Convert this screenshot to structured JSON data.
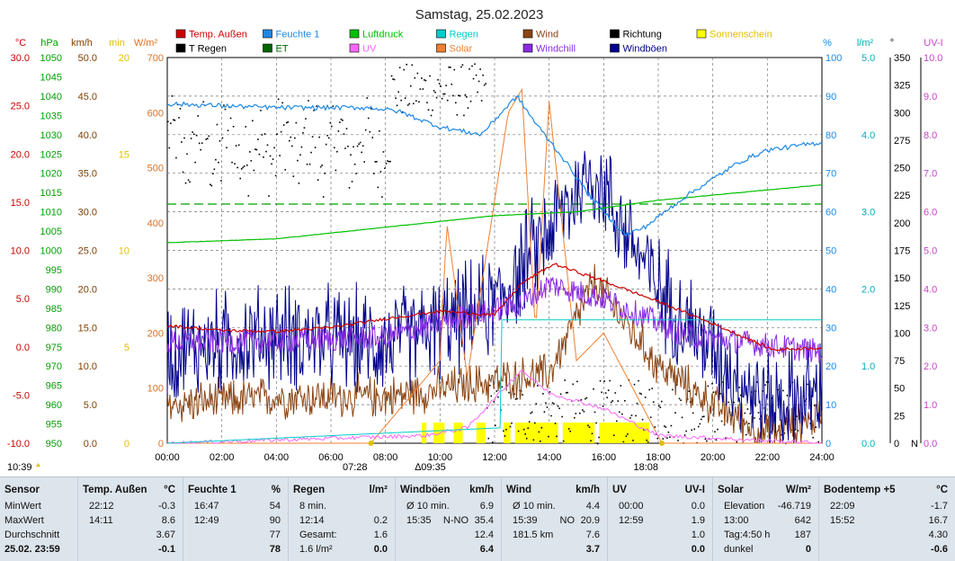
{
  "title": "Samstag, 25.02.2023",
  "legend": [
    {
      "label": "Temp. Außen",
      "color": "#cc0000"
    },
    {
      "label": "Feuchte 1",
      "color": "#1e88e5"
    },
    {
      "label": "Luftdruck",
      "color": "#00c000"
    },
    {
      "label": "Regen",
      "color": "#00cccc"
    },
    {
      "label": "Wind",
      "color": "#8b4513"
    },
    {
      "label": "Richtung",
      "color": "#000000"
    },
    {
      "label": "Sonnenschein",
      "color": "#ffff00"
    },
    {
      "label": "T Regen",
      "color": "#000000"
    },
    {
      "label": "ET",
      "color": "#006600"
    },
    {
      "label": "UV",
      "color": "#ff66ff"
    },
    {
      "label": "Solar",
      "color": "#f08030"
    },
    {
      "label": "Windchill",
      "color": "#8a2be2"
    },
    {
      "label": "Windböen",
      "color": "#00008b"
    }
  ],
  "axes": {
    "temp": {
      "unit": "°C",
      "color": "#cc0000",
      "ticks": [
        "30.0",
        "25.0",
        "20.0",
        "15.0",
        "10.0",
        "5.0",
        "0.0",
        "-5.0",
        "-10.0"
      ]
    },
    "hpa": {
      "unit": "hPa",
      "color": "#00a000",
      "ticks": [
        "1050",
        "1045",
        "1040",
        "1035",
        "1030",
        "1025",
        "1020",
        "1015",
        "1010",
        "1005",
        "1000",
        "995",
        "990",
        "985",
        "980",
        "975",
        "970",
        "965",
        "960",
        "955",
        "950"
      ]
    },
    "kmh": {
      "unit": "km/h",
      "color": "#804000",
      "ticks": [
        "50.0",
        "45.0",
        "40.0",
        "35.0",
        "30.0",
        "25.0",
        "20.0",
        "15.0",
        "10.0",
        "5.0",
        "0.0"
      ]
    },
    "min": {
      "unit": "min",
      "color": "#e0c000",
      "ticks": [
        "20",
        "15",
        "10",
        "5",
        "0"
      ]
    },
    "wm2": {
      "unit": "W/m²",
      "color": "#e07020",
      "ticks": [
        "700",
        "600",
        "500",
        "400",
        "300",
        "200",
        "100",
        "0"
      ]
    },
    "pct": {
      "unit": "%",
      "color": "#1e88e5",
      "ticks": [
        "100",
        "90",
        "80",
        "70",
        "60",
        "50",
        "40",
        "30",
        "20",
        "10",
        "0"
      ]
    },
    "lm2": {
      "unit": "l/m²",
      "color": "#00b0c0",
      "ticks": [
        "5.0",
        "4.0",
        "3.0",
        "2.0",
        "1.0",
        "0.0"
      ]
    },
    "deg": {
      "unit": "°",
      "color": "#000000",
      "ticks": [
        "350",
        "325",
        "300",
        "275",
        "250",
        "225",
        "200",
        "175",
        "150",
        "125",
        "100",
        "75",
        "50",
        "25",
        "0"
      ],
      "bottom_label": "N"
    },
    "uvi": {
      "unit": "UV-I",
      "color": "#cc44cc",
      "ticks": [
        "10.0",
        "9.0",
        "8.0",
        "7.0",
        "6.0",
        "5.0",
        "4.0",
        "3.0",
        "2.0",
        "1.0",
        "0.0"
      ]
    },
    "time_ticks": [
      "00:00",
      "02:00",
      "04:00",
      "06:00",
      "08:00",
      "10:00",
      "12:00",
      "14:00",
      "16:00",
      "18:00",
      "20:00",
      "22:00",
      "24:00"
    ]
  },
  "markers": {
    "sunrise": "07:28",
    "sunset": "18:08",
    "now": "10:39",
    "uvmark": "09:35"
  },
  "chart_data": {
    "type": "line",
    "x_range": [
      "00:00",
      "24:00"
    ],
    "series": [
      {
        "name": "Temp. Außen",
        "unit": "°C",
        "points": [
          [
            "00:00",
            2.2
          ],
          [
            "02:00",
            1.7
          ],
          [
            "04:00",
            1.6
          ],
          [
            "06:00",
            2.0
          ],
          [
            "08:00",
            2.9
          ],
          [
            "10:00",
            3.7
          ],
          [
            "12:00",
            3.3
          ],
          [
            "13:00",
            6.6
          ],
          [
            "14:11",
            8.6
          ],
          [
            "16:00",
            6.8
          ],
          [
            "18:00",
            4.7
          ],
          [
            "20:00",
            2.4
          ],
          [
            "22:12",
            -0.3
          ],
          [
            "24:00",
            -0.1
          ]
        ]
      },
      {
        "name": "Feuchte 1",
        "unit": "%",
        "points": [
          [
            "00:00",
            88
          ],
          [
            "04:00",
            87
          ],
          [
            "07:30",
            87
          ],
          [
            "08:30",
            86
          ],
          [
            "10:00",
            82
          ],
          [
            "11:30",
            80
          ],
          [
            "12:49",
            90
          ],
          [
            "13:30",
            83
          ],
          [
            "14:30",
            74
          ],
          [
            "15:30",
            64
          ],
          [
            "16:47",
            54
          ],
          [
            "17:30",
            56
          ],
          [
            "19:00",
            64
          ],
          [
            "21:00",
            73
          ],
          [
            "22:00",
            76
          ],
          [
            "24:00",
            78
          ]
        ]
      },
      {
        "name": "Luftdruck",
        "unit": "hPa",
        "points": [
          [
            "00:00",
            1002
          ],
          [
            "04:00",
            1003
          ],
          [
            "08:00",
            1006
          ],
          [
            "12:00",
            1009
          ],
          [
            "15:00",
            1010
          ],
          [
            "18:00",
            1013
          ],
          [
            "21:00",
            1015
          ],
          [
            "24:00",
            1017
          ]
        ]
      },
      {
        "name": "Regen",
        "unit": "l/m²",
        "points": [
          [
            "00:00",
            0
          ],
          [
            "12:14",
            0.2
          ],
          [
            "12:15",
            1.6
          ],
          [
            "24:00",
            1.6
          ]
        ]
      },
      {
        "name": "Wind",
        "unit": "km/h",
        "points": [
          [
            "00:00",
            5
          ],
          [
            "04:00",
            6
          ],
          [
            "08:00",
            6
          ],
          [
            "10:00",
            7
          ],
          [
            "12:00",
            8
          ],
          [
            "14:00",
            9
          ],
          [
            "15:39",
            20.9
          ],
          [
            "18:00",
            10
          ],
          [
            "20:00",
            5
          ],
          [
            "22:00",
            1
          ],
          [
            "24:00",
            3.7
          ]
        ]
      },
      {
        "name": "Windböen",
        "unit": "km/h",
        "points": [
          [
            "00:00",
            12
          ],
          [
            "04:00",
            14
          ],
          [
            "08:00",
            13
          ],
          [
            "10:00",
            15
          ],
          [
            "12:00",
            18
          ],
          [
            "15:35",
            35.4
          ],
          [
            "18:00",
            20
          ],
          [
            "20:00",
            12
          ],
          [
            "22:00",
            5
          ],
          [
            "24:00",
            6.4
          ]
        ]
      },
      {
        "name": "Windchill",
        "unit": "°C",
        "points": [
          [
            "00:00",
            0.5
          ],
          [
            "04:00",
            0.6
          ],
          [
            "08:00",
            1.0
          ],
          [
            "10:00",
            2.5
          ],
          [
            "13:00",
            4.5
          ],
          [
            "14:00",
            6.5
          ],
          [
            "16:00",
            5.0
          ],
          [
            "18:00",
            2.5
          ],
          [
            "19:00",
            1.2
          ],
          [
            "24:00",
            -0.5
          ]
        ]
      },
      {
        "name": "Solar",
        "unit": "W/m²",
        "points": [
          [
            "00:00",
            0
          ],
          [
            "07:28",
            0
          ],
          [
            "09:00",
            90
          ],
          [
            "10:00",
            150
          ],
          [
            "10:15",
            400
          ],
          [
            "11:00",
            120
          ],
          [
            "12:30",
            600
          ],
          [
            "13:00",
            642
          ],
          [
            "13:30",
            200
          ],
          [
            "14:00",
            620
          ],
          [
            "15:00",
            150
          ],
          [
            "16:00",
            200
          ],
          [
            "18:08",
            0
          ],
          [
            "24:00",
            0
          ]
        ]
      },
      {
        "name": "UV",
        "unit": "UV-I",
        "points": [
          [
            "00:00",
            0
          ],
          [
            "09:30",
            0.2
          ],
          [
            "11:00",
            0.4
          ],
          [
            "12:59",
            1.9
          ],
          [
            "14:00",
            1.3
          ],
          [
            "16:00",
            0.9
          ],
          [
            "18:00",
            0.2
          ],
          [
            "24:00",
            0
          ]
        ]
      }
    ]
  },
  "stats": {
    "columns": [
      {
        "header": "Sensor",
        "rows": [
          [
            "MinWert"
          ],
          [
            "MaxWert"
          ],
          [
            "Durchschnitt"
          ],
          [
            "25.02. 23:59"
          ]
        ]
      },
      {
        "header": "Temp. Außen",
        "unit": "°C",
        "rows": [
          [
            "22:12",
            "-0.3"
          ],
          [
            "14:11",
            "8.6"
          ],
          [
            "",
            "3.67"
          ],
          [
            "",
            "-0.1"
          ]
        ]
      },
      {
        "header": "Feuchte 1",
        "unit": "%",
        "rows": [
          [
            "16:47",
            "54"
          ],
          [
            "12:49",
            "90"
          ],
          [
            "",
            "77"
          ],
          [
            "",
            "78"
          ]
        ]
      },
      {
        "header": "Regen",
        "unit": "l/m²",
        "rows": [
          [
            "8 min.",
            ""
          ],
          [
            "12:14",
            "0.2"
          ],
          [
            "Gesamt:",
            "1.6"
          ],
          [
            "1.6 l/m²",
            "0.0"
          ]
        ]
      },
      {
        "header": "Windböen",
        "unit": "km/h",
        "rows": [
          [
            "Ø 10 min.",
            "6.9"
          ],
          [
            "15:35",
            "N-NO",
            "35.4"
          ],
          [
            "",
            "12.4"
          ],
          [
            "",
            "6.4"
          ]
        ]
      },
      {
        "header": "Wind",
        "unit": "km/h",
        "rows": [
          [
            "Ø 10 min.",
            "4.4"
          ],
          [
            "15:39",
            "NO",
            "20.9"
          ],
          [
            "181.5 km",
            "7.6"
          ],
          [
            "",
            "3.7"
          ]
        ]
      },
      {
        "header": "UV",
        "unit": "UV-I",
        "rows": [
          [
            "00:00",
            "0.0"
          ],
          [
            "12:59",
            "1.9"
          ],
          [
            "",
            "1.0"
          ],
          [
            "",
            "0.0"
          ]
        ]
      },
      {
        "header": "Solar",
        "unit": "W/m²",
        "rows": [
          [
            "Elevation",
            "-46.719"
          ],
          [
            "13:00",
            "642"
          ],
          [
            "Tag:4:50 h",
            "187"
          ],
          [
            "dunkel",
            "0"
          ]
        ]
      },
      {
        "header": "Bodentemp +5",
        "unit": "°C",
        "rows": [
          [
            "22:09",
            "-1.7"
          ],
          [
            "15:52",
            "16.7"
          ],
          [
            "",
            "4.30"
          ],
          [
            "",
            "-0.6"
          ]
        ]
      }
    ]
  }
}
